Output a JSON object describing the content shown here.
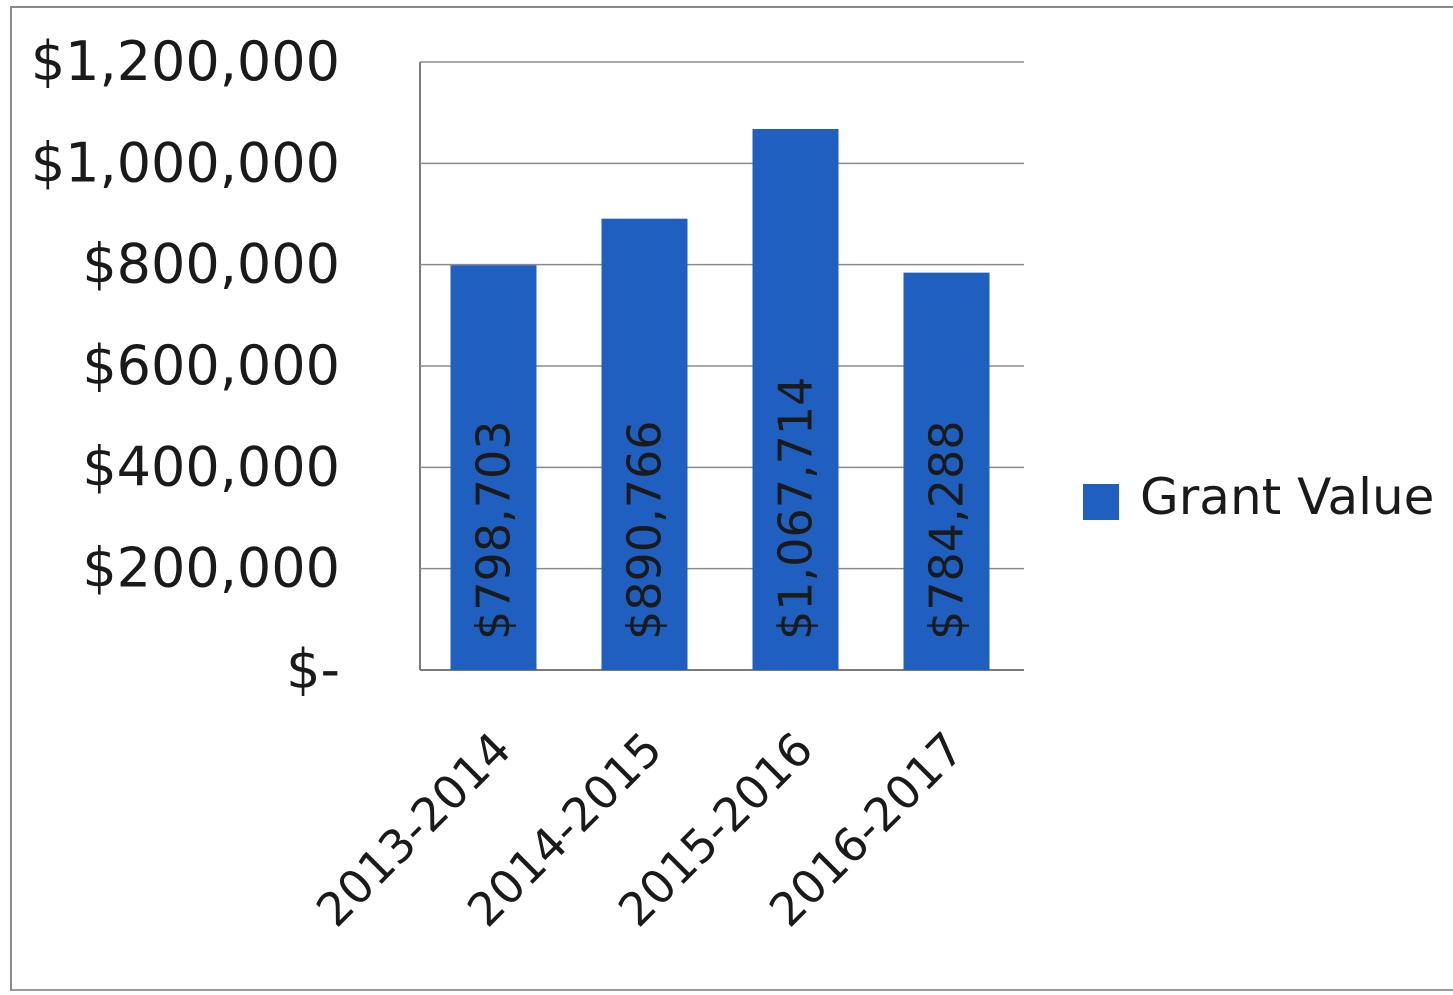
{
  "chart_data": {
    "type": "bar",
    "categories": [
      "2013-2014",
      "2014-2015",
      "2015-2016",
      "2016-2017"
    ],
    "series": [
      {
        "name": "Grant Value",
        "values": [
          798703,
          890766,
          1067714,
          784288
        ],
        "color": "#1f5fbf"
      }
    ],
    "data_labels": [
      "$798,703",
      "$890,766",
      "$1,067,714",
      "$784,288"
    ],
    "y_ticks": [
      {
        "value": 0,
        "label": "$-"
      },
      {
        "value": 200000,
        "label": "$200,000"
      },
      {
        "value": 400000,
        "label": "$400,000"
      },
      {
        "value": 600000,
        "label": "$600,000"
      },
      {
        "value": 800000,
        "label": "$800,000"
      },
      {
        "value": 1000000,
        "label": "$1,000,000"
      },
      {
        "value": 1200000,
        "label": "$1,200,000"
      }
    ],
    "ylim": [
      0,
      1200000
    ],
    "grid": true,
    "legend_position": "right",
    "title": "",
    "xlabel": "",
    "ylabel": ""
  }
}
